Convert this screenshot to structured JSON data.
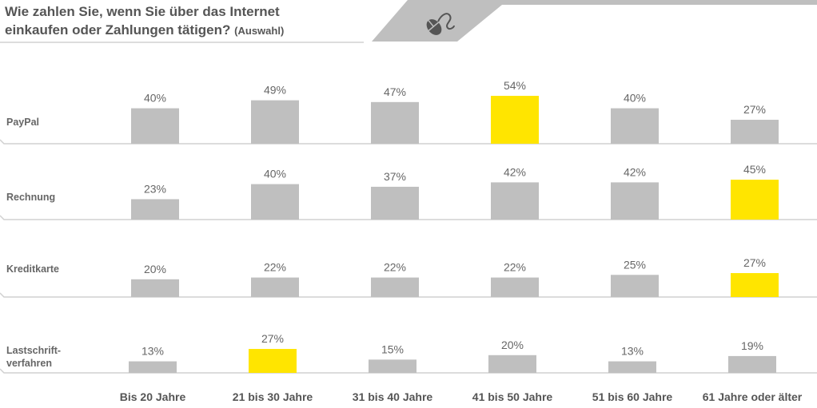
{
  "title": {
    "line1": "Wie zahlen Sie, wenn Sie über das Internet",
    "line2": "einkaufen oder Zahlungen tätigen?",
    "note": "(Auswahl)"
  },
  "header_icon": "computer-mouse-icon",
  "colors": {
    "bar": "#bfbfbf",
    "highlight": "#ffe500"
  },
  "chart_data": {
    "type": "bar",
    "title": "Wie zahlen Sie, wenn Sie über das Internet einkaufen oder Zahlungen tätigen? (Auswahl)",
    "categories": [
      "Bis 20 Jahre",
      "21 bis 30 Jahre",
      "31 bis 40 Jahre",
      "41 bis 50 Jahre",
      "51 bis 60 Jahre",
      "61 Jahre oder älter"
    ],
    "series": [
      {
        "name": "PayPal",
        "label_lines": [
          "PayPal"
        ],
        "values": [
          40,
          49,
          47,
          54,
          40,
          27
        ],
        "labels": [
          "40%",
          "49%",
          "47%",
          "54%",
          "40%",
          "27%"
        ],
        "highlight_index": 3
      },
      {
        "name": "Rechnung",
        "label_lines": [
          "Rechnung"
        ],
        "values": [
          23,
          40,
          37,
          42,
          42,
          45
        ],
        "labels": [
          "23%",
          "40%",
          "37%",
          "42%",
          "42%",
          "45%"
        ],
        "highlight_index": 5
      },
      {
        "name": "Kreditkarte",
        "label_lines": [
          "Kreditkarte"
        ],
        "values": [
          20,
          22,
          22,
          22,
          25,
          27
        ],
        "labels": [
          "20%",
          "22%",
          "22%",
          "22%",
          "25%",
          "27%"
        ],
        "highlight_index": 5
      },
      {
        "name": "Lastschriftverfahren",
        "label_lines": [
          "Lastschrift-",
          "verfahren"
        ],
        "values": [
          13,
          27,
          15,
          20,
          13,
          19
        ],
        "labels": [
          "13%",
          "27%",
          "15%",
          "20%",
          "13%",
          "19%"
        ],
        "highlight_index": 1
      }
    ],
    "unit": "%",
    "ylim": [
      0,
      60
    ]
  }
}
